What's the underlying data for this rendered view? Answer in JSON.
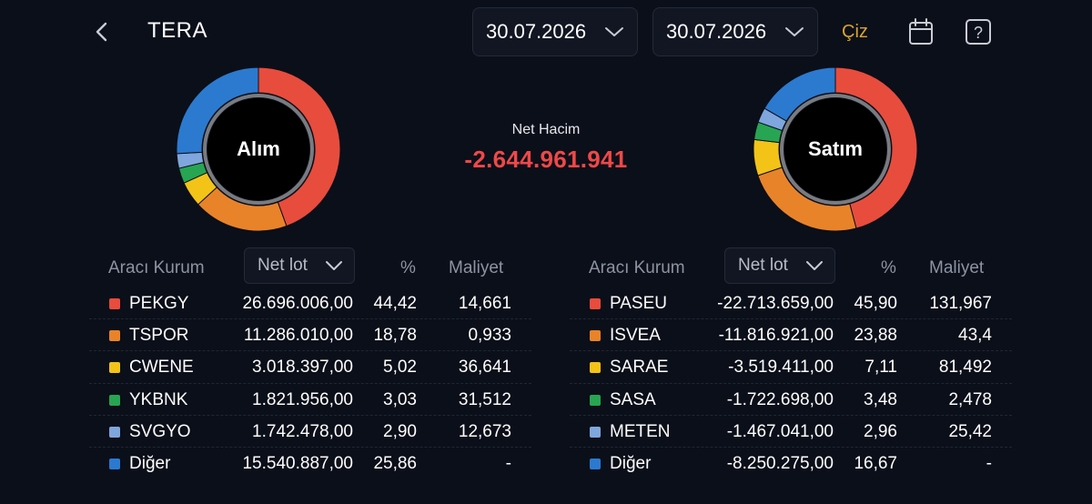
{
  "header": {
    "title": "TERA",
    "start_date": "30.07.2026",
    "end_date": "30.07.2026",
    "draw_label": "Çiz",
    "back_icon": "chevron-left-icon",
    "calendar_icon": "calendar-icon",
    "help_icon": "help-icon"
  },
  "colors": {
    "background": "#0b0f19",
    "accent": "#d8a530",
    "negative": "#ef4848",
    "segments": [
      "#e84c3d",
      "#e9832a",
      "#f3c318",
      "#27a552",
      "#7fa6dd",
      "#2b7ad0"
    ]
  },
  "summary": {
    "net_label": "Net Hacim",
    "net_value": "-2.644.961.941"
  },
  "buy": {
    "donut_label": "Alım",
    "headers": {
      "broker": "Aracı Kurum",
      "lot": "Net lot",
      "pct": "%",
      "cost": "Maliyet"
    },
    "rows": [
      {
        "name": "PEKGY",
        "lot": "26.696.006,00",
        "pct": "44,42",
        "cost": "14,661",
        "share": 44.42
      },
      {
        "name": "TSPOR",
        "lot": "11.286.010,00",
        "pct": "18,78",
        "cost": "0,933",
        "share": 18.78
      },
      {
        "name": "CWENE",
        "lot": "3.018.397,00",
        "pct": "5,02",
        "cost": "36,641",
        "share": 5.02
      },
      {
        "name": "YKBNK",
        "lot": "1.821.956,00",
        "pct": "3,03",
        "cost": "31,512",
        "share": 3.03
      },
      {
        "name": "SVGYO",
        "lot": "1.742.478,00",
        "pct": "2,90",
        "cost": "12,673",
        "share": 2.9
      },
      {
        "name": "Diğer",
        "lot": "15.540.887,00",
        "pct": "25,86",
        "cost": "-",
        "share": 25.86
      }
    ]
  },
  "sell": {
    "donut_label": "Satım",
    "headers": {
      "broker": "Aracı Kurum",
      "lot": "Net lot",
      "pct": "%",
      "cost": "Maliyet"
    },
    "rows": [
      {
        "name": "PASEU",
        "lot": "-22.713.659,00",
        "pct": "45,90",
        "cost": "131,967",
        "share": 45.9
      },
      {
        "name": "ISVEA",
        "lot": "-11.816.921,00",
        "pct": "23,88",
        "cost": "43,4",
        "share": 23.88
      },
      {
        "name": "SARAE",
        "lot": "-3.519.411,00",
        "pct": "7,11",
        "cost": "81,492",
        "share": 7.11
      },
      {
        "name": "SASA",
        "lot": "-1.722.698,00",
        "pct": "3,48",
        "cost": "2,478",
        "share": 3.48
      },
      {
        "name": "METEN",
        "lot": "-1.467.041,00",
        "pct": "2,96",
        "cost": "25,42",
        "share": 2.96
      },
      {
        "name": "Diğer",
        "lot": "-8.250.275,00",
        "pct": "16,67",
        "cost": "-",
        "share": 16.67
      }
    ]
  }
}
